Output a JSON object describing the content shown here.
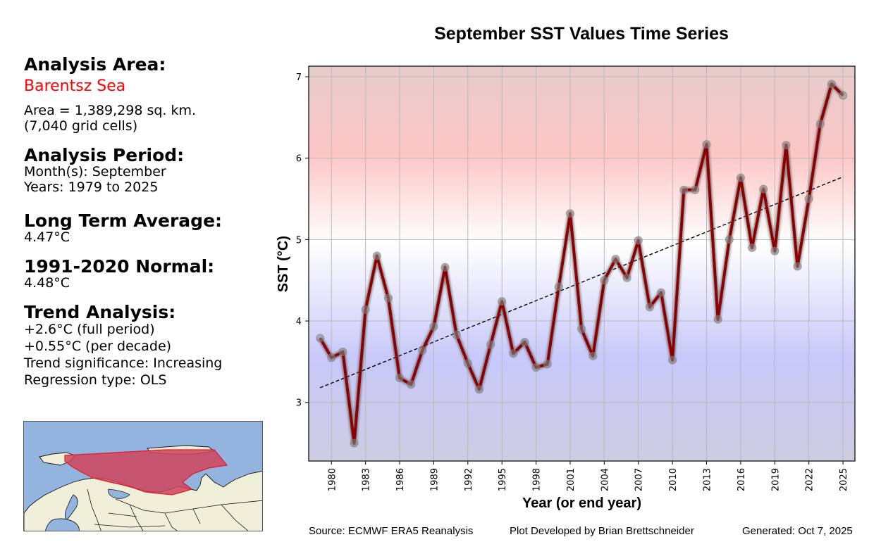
{
  "left_panel": {
    "analysis_area_heading": "Analysis Area:",
    "region_name": "Barentsz Sea",
    "area_line": "Area = 1,389,298 sq. km.",
    "cells_line": "(7,040 grid cells)",
    "period_heading": "Analysis Period:",
    "months_line": "Month(s): September",
    "years_line": "Years: 1979 to 2025",
    "lta_heading": "Long Term Average:",
    "lta_value": "4.47°C",
    "normal_heading": "1991-2020 Normal:",
    "normal_value": "4.48°C",
    "trend_heading": "Trend Analysis:",
    "trend_full": "+2.6°C (full period)",
    "trend_decade": "+0.55°C (per decade)",
    "trend_significance": "Trend significance: Increasing",
    "regression_type": "Regression type: OLS"
  },
  "map": {
    "label": "Barentsz Sea region map",
    "ocean_color": "#94b4e0",
    "land_color": "#f0efda",
    "region_color": "#d0445a"
  },
  "footer": {
    "source": "Source: ECMWF ERA5 Reanalysis",
    "developer": "Plot Developed by Brian Brettschneider",
    "generated": "Generated: Oct 7, 2025"
  },
  "chart_data": {
    "type": "line",
    "title": "September SST Values Time Series",
    "xlabel": "Year (or end year)",
    "ylabel": "SST (°C)",
    "xlim": [
      1978.0,
      2026.05
    ],
    "ylim": [
      2.28,
      7.13
    ],
    "grid": true,
    "xticks": [
      1980,
      1983,
      1986,
      1989,
      1992,
      1995,
      1998,
      2001,
      2004,
      2007,
      2010,
      2013,
      2016,
      2019,
      2022,
      2025
    ],
    "yticks": [
      3,
      4,
      5,
      6,
      7
    ],
    "x": [
      1979,
      1980,
      1981,
      1982,
      1983,
      1984,
      1985,
      1986,
      1987,
      1988,
      1989,
      1990,
      1991,
      1992,
      1993,
      1994,
      1995,
      1996,
      1997,
      1998,
      1999,
      2000,
      2001,
      2002,
      2003,
      2004,
      2005,
      2006,
      2007,
      2008,
      2009,
      2010,
      2011,
      2012,
      2013,
      2014,
      2015,
      2016,
      2017,
      2018,
      2019,
      2020,
      2021,
      2022,
      2023,
      2024,
      2025
    ],
    "series": [
      {
        "name": "September SST",
        "color": "#8b0000",
        "values": [
          3.79,
          3.55,
          3.62,
          2.5,
          4.14,
          4.8,
          4.28,
          3.3,
          3.22,
          3.64,
          3.93,
          4.66,
          3.83,
          3.48,
          3.16,
          3.71,
          4.24,
          3.6,
          3.74,
          3.43,
          3.47,
          4.42,
          5.32,
          3.9,
          3.57,
          4.5,
          4.76,
          4.53,
          4.99,
          4.17,
          4.35,
          3.52,
          5.61,
          5.61,
          6.17,
          4.02,
          5.0,
          5.76,
          4.9,
          5.62,
          4.86,
          6.16,
          4.67,
          5.5,
          6.42,
          6.91,
          6.77
        ]
      }
    ],
    "trend": {
      "name": "OLS trend",
      "style": "dashed",
      "color": "#000000",
      "x": [
        1979,
        2025
      ],
      "values": [
        3.18,
        5.77
      ]
    },
    "background_gradient": {
      "top_color": "#e6cccc",
      "warm_color": "#fdc6c6",
      "neutral_color": "#ffffff",
      "cool_color": "#c8c8fa",
      "bottom_color": "#cdcce0"
    }
  }
}
